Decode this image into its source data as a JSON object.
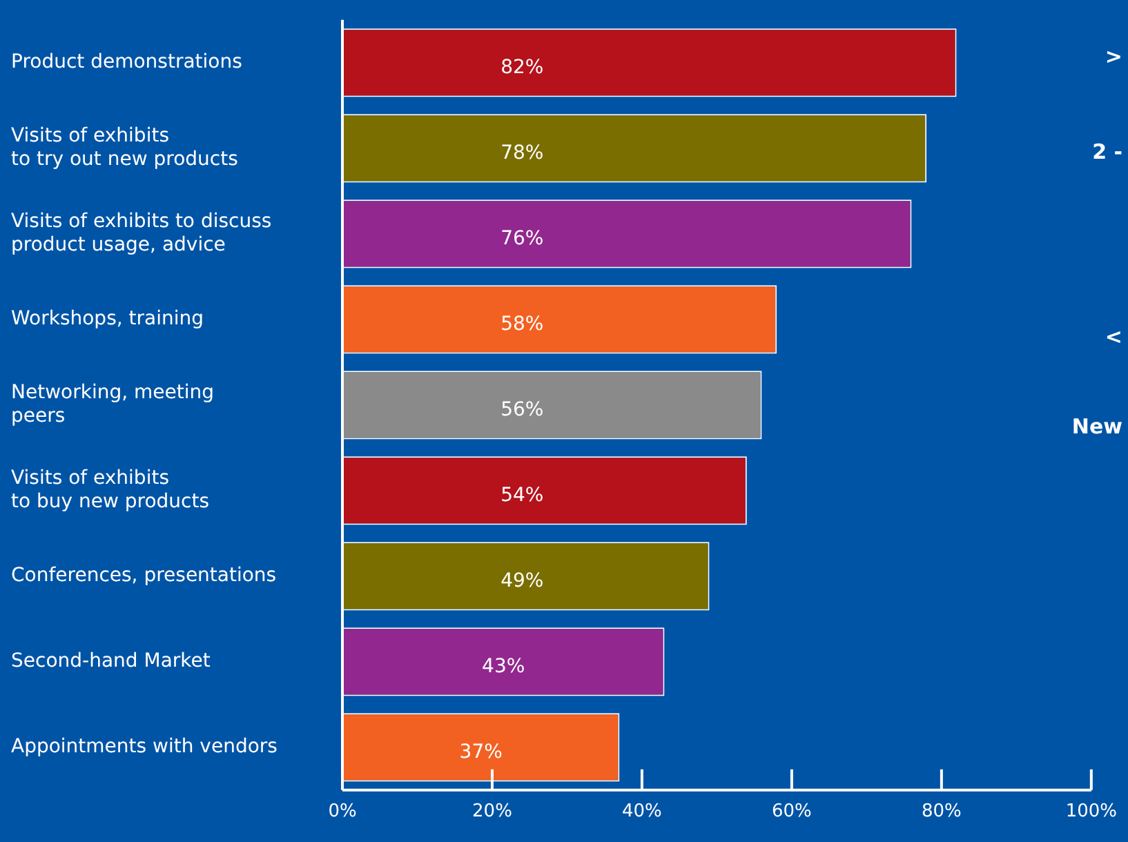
{
  "chart_data": {
    "type": "bar",
    "orientation": "horizontal",
    "categories": [
      "Product demonstrations",
      "Visits of exhibits\nto try out new products",
      "Visits of exhibits to discuss\nproduct usage, advice",
      "Workshops, training",
      "Networking, meeting\npeers",
      "Visits of exhibits\nto buy new products",
      "Conferences, presentations",
      "Second-hand Market",
      "Appointments with vendors"
    ],
    "values": [
      82,
      78,
      76,
      58,
      56,
      54,
      49,
      43,
      37
    ],
    "colors": [
      "#b5121b",
      "#7a6e00",
      "#92278f",
      "#f26122",
      "#8a8a8a",
      "#b5121b",
      "#7a6e00",
      "#92278f",
      "#f26122"
    ],
    "value_labels": [
      "82%",
      "78%",
      "76%",
      "58%",
      "56%",
      "54%",
      "49%",
      "43%",
      "37%"
    ],
    "xlim": [
      0,
      100
    ],
    "xticks": [
      {
        "value": 0,
        "label": "0%"
      },
      {
        "value": 20,
        "label": "20%"
      },
      {
        "value": 40,
        "label": "40%"
      },
      {
        "value": 60,
        "label": "60%"
      },
      {
        "value": 80,
        "label": "80%"
      },
      {
        "value": 100,
        "label": "100%"
      }
    ],
    "grid": false,
    "legend": false,
    "annotations": [
      ">",
      "2 -",
      "<",
      "New"
    ]
  }
}
